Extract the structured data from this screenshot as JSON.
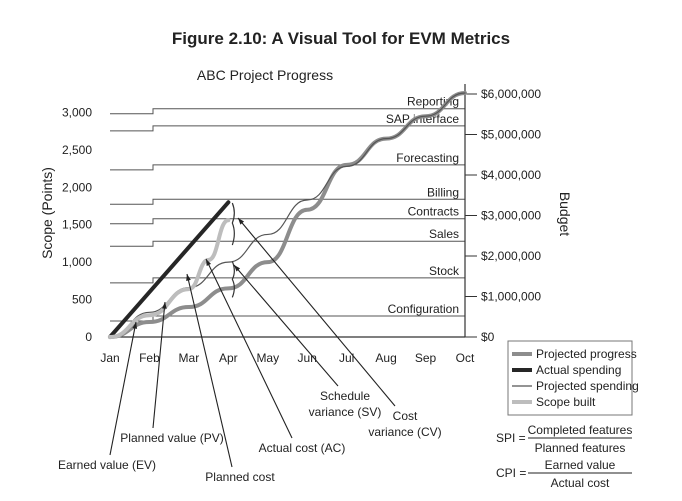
{
  "figure_title": "Figure 2.10: A Visual Tool for EVM Metrics",
  "chart_data": {
    "type": "line",
    "title": "ABC Project Progress",
    "ylabel": "Scope (Points)",
    "y2label": "Budget",
    "ylim": [
      0,
      3300
    ],
    "y2lim": [
      0,
      6000000
    ],
    "yticks": [
      0,
      500,
      1000,
      1500,
      2000,
      2500,
      3000
    ],
    "yticklabels": [
      "0",
      "500",
      "1,000",
      "1,500",
      "2,000",
      "2,500",
      "3,000"
    ],
    "y2ticks": [
      0,
      1000000,
      2000000,
      3000000,
      4000000,
      5000000,
      6000000
    ],
    "y2ticklabels": [
      "$0",
      "$1,000,000",
      "$2,000,000",
      "$3,000,000",
      "$4,000,000",
      "$5,000,000",
      "$6,000,000"
    ],
    "categories": [
      "Jan",
      "Feb",
      "Mar",
      "Apr",
      "May",
      "Jun",
      "Jul",
      "Aug",
      "Sep",
      "Oct"
    ],
    "bands": [
      {
        "label": "Configuration",
        "points": 280
      },
      {
        "label": "Stock",
        "points": 790
      },
      {
        "label": "Sales",
        "points": 1280
      },
      {
        "label": "Contracts",
        "points": 1580
      },
      {
        "label": "Billing",
        "points": 1840
      },
      {
        "label": "Forecasting",
        "points": 2300
      },
      {
        "label": "SAP interface",
        "points": 2820
      },
      {
        "label": "Reporting",
        "points": 3050
      }
    ],
    "series": [
      {
        "name": "Projected progress",
        "color": "#8a8a8a",
        "x": [
          0,
          1,
          2,
          3,
          4,
          5,
          6,
          7,
          8,
          9
        ],
        "y": [
          0,
          200,
          400,
          650,
          1000,
          1700,
          2300,
          2650,
          2950,
          3260
        ]
      },
      {
        "name": "Actual spending",
        "color": "#2b2b2b",
        "x": [
          0,
          3.0
        ],
        "y": [
          0,
          1800
        ]
      },
      {
        "name": "Projected spending",
        "color": "#666666",
        "x": [
          0,
          1,
          2,
          3,
          4,
          5,
          6,
          7,
          8,
          9
        ],
        "y": [
          0,
          330,
          660,
          1000,
          1370,
          1830,
          2280,
          2650,
          2950,
          3260
        ]
      },
      {
        "name": "Scope built",
        "color": "#c2c2c2",
        "x": [
          0,
          1,
          2,
          2.5,
          3.0
        ],
        "y": [
          0,
          290,
          640,
          1030,
          1560
        ]
      }
    ],
    "annotations": [
      {
        "label": "Schedule",
        "label2": "variance (SV)"
      },
      {
        "label": "Cost",
        "label2": "variance (CV)"
      },
      {
        "label": "Planned value (PV)"
      },
      {
        "label": "Actual cost (AC)"
      },
      {
        "label": "Earned value (EV)"
      },
      {
        "label": "Planned cost"
      }
    ],
    "legend_position": "bottom-right",
    "formulas": [
      {
        "lhs": "SPI =",
        "num": "Completed features",
        "den": "Planned features"
      },
      {
        "lhs": "CPI =",
        "num": "Earned value",
        "den": "Actual cost"
      }
    ]
  }
}
